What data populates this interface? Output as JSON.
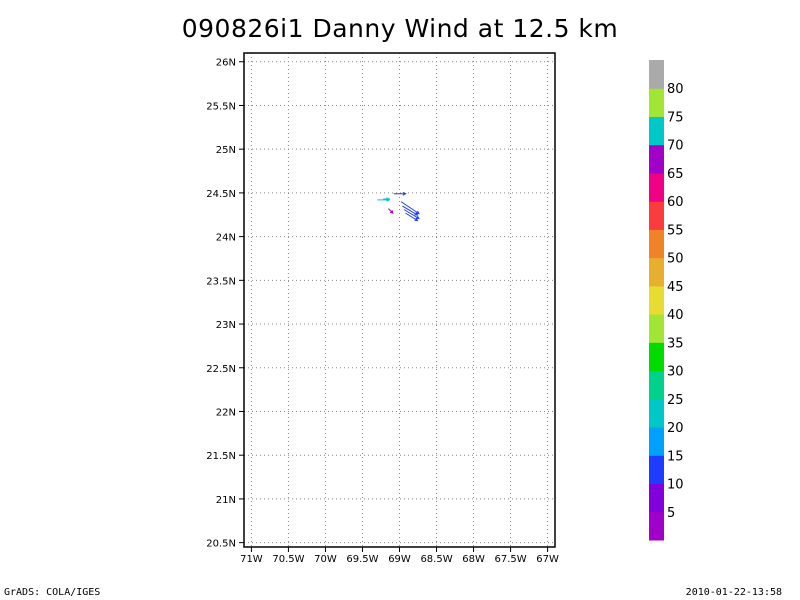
{
  "chart_data": {
    "type": "vector-field",
    "title": "090826i1 Danny Wind at 12.5 km",
    "xlabel": "",
    "ylabel": "",
    "xlim": [
      -71.1,
      -66.9
    ],
    "ylim": [
      20.45,
      26.1
    ],
    "x_ticks": [
      {
        "value": -71,
        "label": "71W"
      },
      {
        "value": -70.5,
        "label": "70.5W"
      },
      {
        "value": -70,
        "label": "70W"
      },
      {
        "value": -69.5,
        "label": "69.5W"
      },
      {
        "value": -69,
        "label": "69W"
      },
      {
        "value": -68.5,
        "label": "68.5W"
      },
      {
        "value": -68,
        "label": "68W"
      },
      {
        "value": -67.5,
        "label": "67.5W"
      },
      {
        "value": -67,
        "label": "67W"
      }
    ],
    "y_ticks": [
      {
        "value": 20.5,
        "label": "20.5N"
      },
      {
        "value": 21,
        "label": "21N"
      },
      {
        "value": 21.5,
        "label": "21.5N"
      },
      {
        "value": 22,
        "label": "22N"
      },
      {
        "value": 22.5,
        "label": "22.5N"
      },
      {
        "value": 23,
        "label": "23N"
      },
      {
        "value": 23.5,
        "label": "23.5N"
      },
      {
        "value": 24,
        "label": "24N"
      },
      {
        "value": 24.5,
        "label": "24.5N"
      },
      {
        "value": 25,
        "label": "25N"
      },
      {
        "value": 25.5,
        "label": "25.5N"
      },
      {
        "value": 26,
        "label": "26N"
      }
    ],
    "grid": true,
    "vectors": [
      {
        "lon": -69.3,
        "lat": 24.42,
        "u": 8,
        "v": 0,
        "color": "#00c8c8"
      },
      {
        "lon": -69.22,
        "lat": 24.43,
        "u": 4,
        "v": 0,
        "color": "#00c8c8"
      },
      {
        "lon": -69.08,
        "lat": 24.49,
        "u": 8,
        "v": 0,
        "color": "#1e3cff"
      },
      {
        "lon": -68.98,
        "lat": 24.4,
        "u": 12,
        "v": -8,
        "color": "#1e3cff"
      },
      {
        "lon": -68.96,
        "lat": 24.35,
        "u": 10,
        "v": -6,
        "color": "#1e3cff"
      },
      {
        "lon": -68.94,
        "lat": 24.31,
        "u": 10,
        "v": -6,
        "color": "#1e3cff"
      },
      {
        "lon": -68.92,
        "lat": 24.27,
        "u": 8,
        "v": -5,
        "color": "#1e3cff"
      },
      {
        "lon": -69.15,
        "lat": 24.32,
        "u": 3,
        "v": -3,
        "color": "#a000c8"
      }
    ],
    "colorbar": {
      "labels": [
        "5",
        "10",
        "15",
        "20",
        "25",
        "30",
        "35",
        "40",
        "45",
        "50",
        "55",
        "60",
        "65",
        "70",
        "75",
        "80"
      ],
      "colors": [
        "#a000c8",
        "#8200dc",
        "#1e3cff",
        "#00a0ff",
        "#00c8c8",
        "#00d28c",
        "#00dc00",
        "#a0e632",
        "#e6dc32",
        "#e6af2d",
        "#f08228",
        "#fa3c3c",
        "#f00082",
        "#a000c8",
        "#00c8c8",
        "#a0e632",
        "#aaaaaa"
      ]
    }
  },
  "footer": {
    "left": "GrADS: COLA/IGES",
    "right": "2010-01-22-13:58"
  }
}
